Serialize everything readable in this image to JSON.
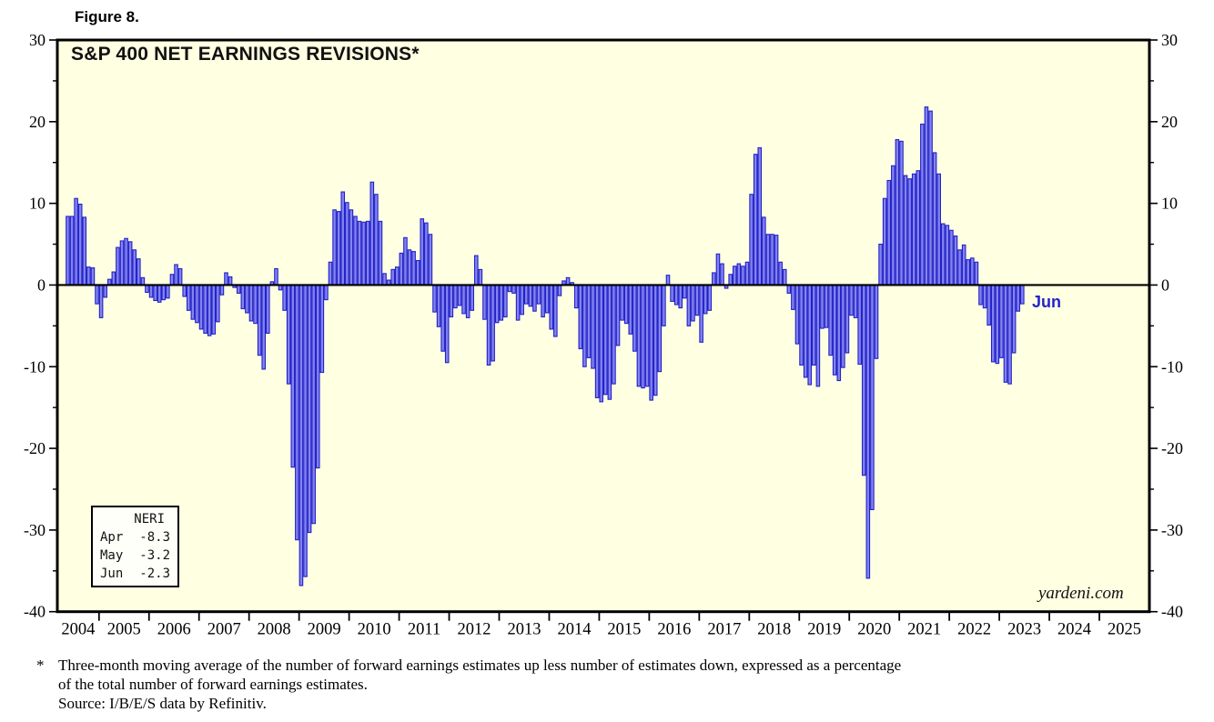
{
  "figure_label": "Figure 8.",
  "chart": {
    "title": "S&P 400 NET EARNINGS REVISIONS*",
    "watermark": "yardeni.com",
    "last_point_label": "Jun",
    "legend": {
      "header": "NERI",
      "rows": [
        {
          "label": "Apr",
          "value": "-8.3"
        },
        {
          "label": "May",
          "value": "-3.2"
        },
        {
          "label": "Jun",
          "value": "-2.3"
        }
      ]
    },
    "colors": {
      "bar_fill": "#8484F0",
      "bar_stroke": "#2121C8",
      "plot_bg": "#FFFFE2",
      "axis": "#000000",
      "annotation_blue": "#2323CC"
    }
  },
  "chart_data": {
    "type": "bar",
    "title": "S&P 400 NET EARNINGS REVISIONS*",
    "series_name": "NERI (3-month moving average, %)",
    "frequency": "monthly",
    "x_start": "2004-05",
    "x_end": "2023-06",
    "axis_time_range": [
      "2004-03",
      "2025-12"
    ],
    "ylim": [
      -40,
      30
    ],
    "y_major_ticks": [
      30,
      20,
      10,
      0,
      -10,
      -20,
      -30,
      -40
    ],
    "y_minor_ticks": [
      25,
      15,
      5,
      -5,
      -15,
      -25,
      -35
    ],
    "x_axis_years": [
      2004,
      2005,
      2006,
      2007,
      2008,
      2009,
      2010,
      2011,
      2012,
      2013,
      2014,
      2015,
      2016,
      2017,
      2018,
      2019,
      2020,
      2021,
      2022,
      2023,
      2024,
      2025
    ],
    "grid": false,
    "legend_position": "bottom-left",
    "values": [
      8.4,
      8.4,
      10.6,
      9.9,
      8.3,
      2.2,
      2.1,
      -2.3,
      -4.0,
      -1.5,
      0.7,
      1.6,
      4.6,
      5.4,
      5.7,
      5.3,
      4.3,
      3.2,
      0.9,
      -0.9,
      -1.5,
      -1.9,
      -2.1,
      -1.8,
      -1.6,
      1.3,
      2.5,
      2.0,
      -1.4,
      -3.1,
      -4.2,
      -4.6,
      -5.4,
      -5.9,
      -6.2,
      -6.0,
      -4.5,
      -1.2,
      1.5,
      1.0,
      -0.3,
      -1.0,
      -2.9,
      -3.4,
      -4.4,
      -4.7,
      -8.6,
      -10.3,
      -5.9,
      0.4,
      2.0,
      -0.6,
      -3.1,
      -12.1,
      -22.3,
      -31.2,
      -36.8,
      -35.7,
      -30.3,
      -29.2,
      -22.4,
      -10.7,
      -1.8,
      2.8,
      9.2,
      9.0,
      11.4,
      10.1,
      9.2,
      8.4,
      7.8,
      7.7,
      7.8,
      12.6,
      11.1,
      7.8,
      1.4,
      0.6,
      1.9,
      2.2,
      3.9,
      5.8,
      4.3,
      4.1,
      3.0,
      8.1,
      7.6,
      6.2,
      -3.3,
      -5.1,
      -8.1,
      -9.5,
      -3.9,
      -2.8,
      -2.5,
      -3.5,
      -4.0,
      -3.1,
      3.6,
      1.9,
      -4.2,
      -9.8,
      -9.3,
      -4.6,
      -4.3,
      -3.9,
      -0.8,
      -1.0,
      -4.3,
      -3.6,
      -2.3,
      -2.6,
      -3.2,
      -2.3,
      -3.9,
      -3.4,
      -5.4,
      -6.3,
      -1.3,
      0.5,
      0.9,
      0.3,
      -2.8,
      -7.8,
      -10.0,
      -8.9,
      -10.2,
      -13.8,
      -14.3,
      -13.4,
      -14.0,
      -12.1,
      -7.4,
      -4.3,
      -4.7,
      -6.0,
      -8.1,
      -12.4,
      -12.6,
      -12.4,
      -14.1,
      -13.5,
      -10.6,
      -5.0,
      1.2,
      -2.0,
      -2.4,
      -2.8,
      -1.6,
      -5.0,
      -4.4,
      -3.7,
      -7.0,
      -3.5,
      -3.1,
      1.5,
      3.8,
      2.6,
      -0.4,
      1.3,
      2.3,
      2.6,
      2.3,
      2.8,
      11.1,
      16.0,
      16.8,
      8.3,
      6.2,
      6.2,
      6.1,
      2.8,
      1.9,
      -1.0,
      -3.0,
      -7.2,
      -9.8,
      -11.3,
      -12.2,
      -9.8,
      -12.4,
      -5.3,
      -5.2,
      -8.6,
      -11.0,
      -11.7,
      -10.1,
      -8.3,
      -3.7,
      -4.0,
      -9.7,
      -23.3,
      -35.9,
      -27.5,
      -9.0,
      5.0,
      10.6,
      12.8,
      14.6,
      17.8,
      17.6,
      13.4,
      13.0,
      13.6,
      14.0,
      19.7,
      21.8,
      21.3,
      16.2,
      13.6,
      7.5,
      7.3,
      6.7,
      6.0,
      4.3,
      4.9,
      3.1,
      3.3,
      2.8,
      -2.4,
      -2.8,
      -4.9,
      -9.4,
      -9.6,
      -8.9,
      -11.9,
      -12.1,
      -8.3,
      -3.2,
      -2.3
    ]
  },
  "footnote": {
    "symbol": "*",
    "line1": "Three-month moving average of the number of forward earnings estimates up less number of estimates down, expressed as a percentage",
    "line2": "of the total number of forward earnings estimates.",
    "source": "Source: I/B/E/S data by Refinitiv."
  }
}
